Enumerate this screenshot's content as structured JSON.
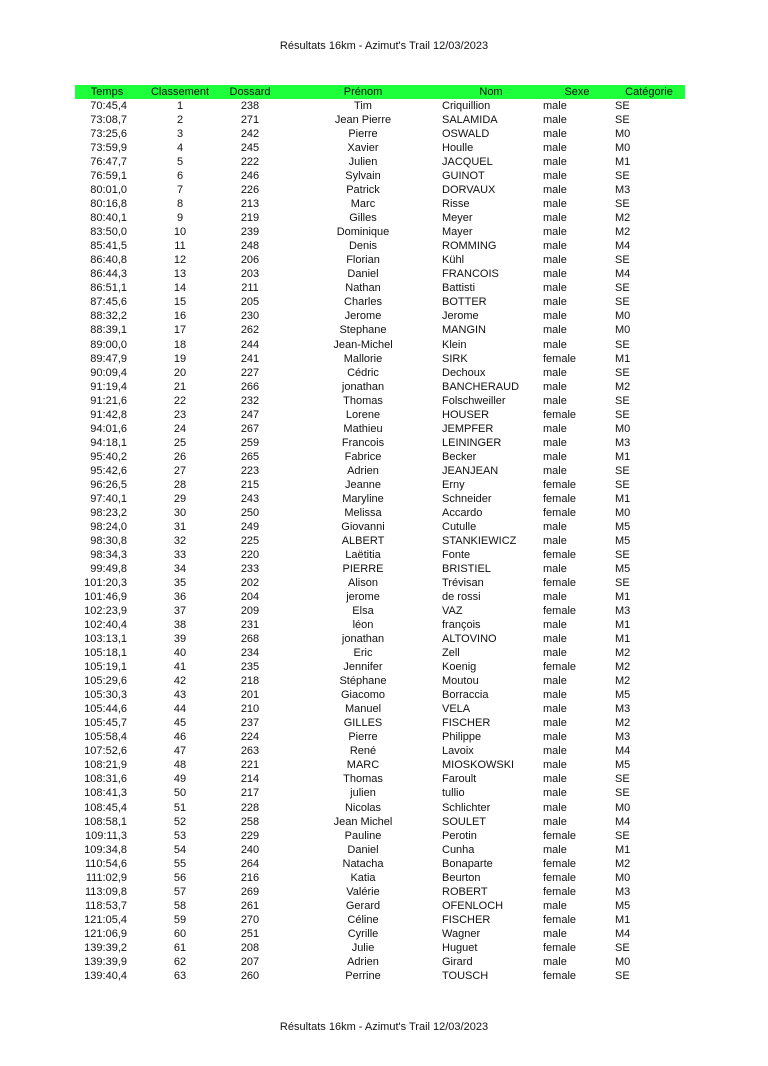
{
  "title": "Résultats 16km - Azimut's Trail 12/03/2023",
  "footer": "Résultats 16km - Azimut's Trail 12/03/2023",
  "header_color": "#1dff3a",
  "columns": [
    "Temps",
    "Classement",
    "Dossard",
    "Prénom",
    "Nom",
    "Sexe",
    "Catégorie"
  ],
  "rows": [
    [
      "70:45,4",
      "1",
      "238",
      "Tim",
      "Criquillion",
      "male",
      "SE"
    ],
    [
      "73:08,7",
      "2",
      "271",
      "Jean Pierre",
      "SALAMIDA",
      "male",
      "SE"
    ],
    [
      "73:25,6",
      "3",
      "242",
      "Pierre",
      "OSWALD",
      "male",
      "M0"
    ],
    [
      "73:59,9",
      "4",
      "245",
      "Xavier",
      "Houlle",
      "male",
      "M0"
    ],
    [
      "76:47,7",
      "5",
      "222",
      "Julien",
      "JACQUEL",
      "male",
      "M1"
    ],
    [
      "76:59,1",
      "6",
      "246",
      "Sylvain",
      "GUINOT",
      "male",
      "SE"
    ],
    [
      "80:01,0",
      "7",
      "226",
      "Patrick",
      "DORVAUX",
      "male",
      "M3"
    ],
    [
      "80:16,8",
      "8",
      "213",
      "Marc",
      "Risse",
      "male",
      "SE"
    ],
    [
      "80:40,1",
      "9",
      "219",
      "Gilles",
      "Meyer",
      "male",
      "M2"
    ],
    [
      "83:50,0",
      "10",
      "239",
      "Dominique",
      "Mayer",
      "male",
      "M2"
    ],
    [
      "85:41,5",
      "11",
      "248",
      "Denis",
      "ROMMING",
      "male",
      "M4"
    ],
    [
      "86:40,8",
      "12",
      "206",
      "Florian",
      "Kühl",
      "male",
      "SE"
    ],
    [
      "86:44,3",
      "13",
      "203",
      "Daniel",
      "FRANCOIS",
      "male",
      "M4"
    ],
    [
      "86:51,1",
      "14",
      "211",
      "Nathan",
      "Battisti",
      "male",
      "SE"
    ],
    [
      "87:45,6",
      "15",
      "205",
      "Charles",
      "BOTTER",
      "male",
      "SE"
    ],
    [
      "88:32,2",
      "16",
      "230",
      "Jerome",
      "Jerome",
      "male",
      "M0"
    ],
    [
      "88:39,1",
      "17",
      "262",
      "Stephane",
      "MANGIN",
      "male",
      "M0"
    ],
    [
      "89:00,0",
      "18",
      "244",
      "Jean-Michel",
      "Klein",
      "male",
      "SE"
    ],
    [
      "89:47,9",
      "19",
      "241",
      "Mallorie",
      "SIRK",
      "female",
      "M1"
    ],
    [
      "90:09,4",
      "20",
      "227",
      "Cédric",
      "Dechoux",
      "male",
      "SE"
    ],
    [
      "91:19,4",
      "21",
      "266",
      "jonathan",
      "BANCHERAUD",
      "male",
      "M2"
    ],
    [
      "91:21,6",
      "22",
      "232",
      "Thomas",
      "Folschweiller",
      "male",
      "SE"
    ],
    [
      "91:42,8",
      "23",
      "247",
      "Lorene",
      "HOUSER",
      "female",
      "SE"
    ],
    [
      "94:01,6",
      "24",
      "267",
      "Mathieu",
      "JEMPFER",
      "male",
      "M0"
    ],
    [
      "94:18,1",
      "25",
      "259",
      "Francois",
      "LEININGER",
      "male",
      "M3"
    ],
    [
      "95:40,2",
      "26",
      "265",
      "Fabrice",
      "Becker",
      "male",
      "M1"
    ],
    [
      "95:42,6",
      "27",
      "223",
      "Adrien",
      "JEANJEAN",
      "male",
      "SE"
    ],
    [
      "96:26,5",
      "28",
      "215",
      "Jeanne",
      "Erny",
      "female",
      "SE"
    ],
    [
      "97:40,1",
      "29",
      "243",
      "Maryline",
      "Schneider",
      "female",
      "M1"
    ],
    [
      "98:23,2",
      "30",
      "250",
      "Melissa",
      "Accardo",
      "female",
      "M0"
    ],
    [
      "98:24,0",
      "31",
      "249",
      "Giovanni",
      "Cutulle",
      "male",
      "M5"
    ],
    [
      "98:30,8",
      "32",
      "225",
      "ALBERT",
      "STANKIEWICZ",
      "male",
      "M5"
    ],
    [
      "98:34,3",
      "33",
      "220",
      "Laëtitia",
      "Fonte",
      "female",
      "SE"
    ],
    [
      "99:49,8",
      "34",
      "233",
      "PIERRE",
      "BRISTIEL",
      "male",
      "M5"
    ],
    [
      "101:20,3",
      "35",
      "202",
      "Alison",
      "Trévisan",
      "female",
      "SE"
    ],
    [
      "101:46,9",
      "36",
      "204",
      "jerome",
      "de rossi",
      "male",
      "M1"
    ],
    [
      "102:23,9",
      "37",
      "209",
      "Elsa",
      "VAZ",
      "female",
      "M3"
    ],
    [
      "102:40,4",
      "38",
      "231",
      "léon",
      "françois",
      "male",
      "M1"
    ],
    [
      "103:13,1",
      "39",
      "268",
      "jonathan",
      "ALTOVINO",
      "male",
      "M1"
    ],
    [
      "105:18,1",
      "40",
      "234",
      "Eric",
      "Zell",
      "male",
      "M2"
    ],
    [
      "105:19,1",
      "41",
      "235",
      "Jennifer",
      "Koenig",
      "female",
      "M2"
    ],
    [
      "105:29,6",
      "42",
      "218",
      "Stéphane",
      "Moutou",
      "male",
      "M2"
    ],
    [
      "105:30,3",
      "43",
      "201",
      "Giacomo",
      "Borraccia",
      "male",
      "M5"
    ],
    [
      "105:44,6",
      "44",
      "210",
      "Manuel",
      "VELA",
      "male",
      "M3"
    ],
    [
      "105:45,7",
      "45",
      "237",
      "GILLES",
      "FISCHER",
      "male",
      "M2"
    ],
    [
      "105:58,4",
      "46",
      "224",
      "Pierre",
      "Philippe",
      "male",
      "M3"
    ],
    [
      "107:52,6",
      "47",
      "263",
      "René",
      "Lavoix",
      "male",
      "M4"
    ],
    [
      "108:21,9",
      "48",
      "221",
      "MARC",
      "MIOSKOWSKI",
      "male",
      "M5"
    ],
    [
      "108:31,6",
      "49",
      "214",
      "Thomas",
      "Faroult",
      "male",
      "SE"
    ],
    [
      "108:41,3",
      "50",
      "217",
      "julien",
      "tullio",
      "male",
      "SE"
    ],
    [
      "108:45,4",
      "51",
      "228",
      "Nicolas",
      "Schlichter",
      "male",
      "M0"
    ],
    [
      "108:58,1",
      "52",
      "258",
      "Jean Michel",
      "SOULET",
      "male",
      "M4"
    ],
    [
      "109:11,3",
      "53",
      "229",
      "Pauline",
      "Perotin",
      "female",
      "SE"
    ],
    [
      "109:34,8",
      "54",
      "240",
      "Daniel",
      "Cunha",
      "male",
      "M1"
    ],
    [
      "110:54,6",
      "55",
      "264",
      "Natacha",
      "Bonaparte",
      "female",
      "M2"
    ],
    [
      "111:02,9",
      "56",
      "216",
      "Katia",
      "Beurton",
      "female",
      "M0"
    ],
    [
      "113:09,8",
      "57",
      "269",
      "Valérie",
      "ROBERT",
      "female",
      "M3"
    ],
    [
      "118:53,7",
      "58",
      "261",
      "Gerard",
      "OFENLOCH",
      "male",
      "M5"
    ],
    [
      "121:05,4",
      "59",
      "270",
      "Céline",
      "FISCHER",
      "female",
      "M1"
    ],
    [
      "121:06,9",
      "60",
      "251",
      "Cyrille",
      "Wagner",
      "male",
      "M4"
    ],
    [
      "139:39,2",
      "61",
      "208",
      "Julie",
      "Huguet",
      "female",
      "SE"
    ],
    [
      "139:39,9",
      "62",
      "207",
      "Adrien",
      "Girard",
      "male",
      "M0"
    ],
    [
      "139:40,4",
      "63",
      "260",
      "Perrine",
      "TOUSCH",
      "female",
      "SE"
    ]
  ]
}
